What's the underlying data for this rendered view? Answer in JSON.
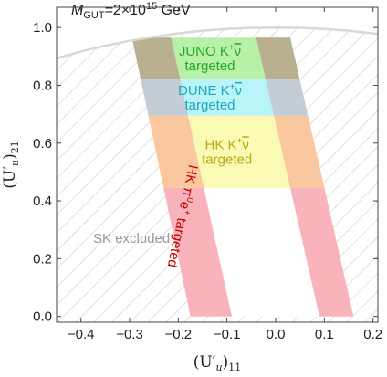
{
  "chart_data": {
    "type": "area",
    "xlabel": "(U′",
    "xlabel_sub": "u",
    "xlabel_tail": ")",
    "xlabel_index": "11",
    "ylabel": "(U′",
    "ylabel_sub": "u",
    "ylabel_tail": ")",
    "ylabel_index": "21",
    "xlim": [
      -0.45,
      0.21
    ],
    "ylim": [
      -0.02,
      1.07
    ],
    "x_ticks": [
      "-0.4",
      "-0.3",
      "-0.2",
      "-0.1",
      "0.0",
      "0.1",
      "0.2"
    ],
    "x_tick_values": [
      -0.4,
      -0.3,
      -0.2,
      -0.1,
      0.0,
      0.1,
      0.2
    ],
    "y_ticks": [
      "0.0",
      "0.2",
      "0.4",
      "0.6",
      "0.8",
      "1.0"
    ],
    "y_tick_values": [
      0.0,
      0.2,
      0.4,
      0.6,
      0.8,
      1.0
    ],
    "grid": false,
    "annotation": {
      "m": "M",
      "m_sub": "GUT",
      "eq": "=2×10",
      "exp": "15",
      "unit": " GeV"
    },
    "unitarity_curve": {
      "x": [
        -0.45,
        -0.4,
        -0.35,
        -0.3,
        -0.25,
        -0.2,
        -0.15,
        -0.1,
        -0.05,
        0.0,
        0.05,
        0.1,
        0.15,
        0.21
      ],
      "y": [
        0.893,
        0.917,
        0.937,
        0.954,
        0.968,
        0.98,
        0.989,
        0.995,
        0.999,
        1.0,
        0.999,
        0.995,
        0.989,
        0.978
      ]
    },
    "excluded_region": {
      "label": "SK excluded",
      "label_color": "#999999",
      "hatch_color": "#cccccc"
    },
    "hk_pi0": {
      "label_lines": [
        "HK π",
        "0",
        "e",
        "+",
        " targeted"
      ],
      "color": "#f8b3bb",
      "text_color": "#c00000",
      "left_band": [
        [
          -0.175,
          0.0
        ],
        [
          -0.09,
          0.0
        ],
        [
          -0.215,
          0.965
        ],
        [
          -0.295,
          0.965
        ]
      ],
      "right_band": [
        [
          0.09,
          0.0
        ],
        [
          0.16,
          0.0
        ],
        [
          0.03,
          0.965
        ],
        [
          -0.04,
          0.965
        ]
      ]
    },
    "regions": [
      {
        "name": "juno",
        "label_line1": "JUNO K",
        "label_sup": "+",
        "label_nu": "ν",
        "label_line2": "targeted",
        "ymin": 0.82,
        "ymax": 0.965,
        "color": "#b9f0a8",
        "overlap_color": "#b9b08f",
        "text_color": "#22aa22"
      },
      {
        "name": "dune",
        "label_line1": "DUNE K",
        "label_sup": "+",
        "label_nu": "ν",
        "label_line2": "targeted",
        "ymin": 0.695,
        "ymax": 0.82,
        "color": "#b8f4f8",
        "overlap_color": "#c2cdd6",
        "text_color": "#20a6c0"
      },
      {
        "name": "hk",
        "label_line1": "HK K",
        "label_sup": "+",
        "label_nu": "ν",
        "label_line2": "targeted",
        "ymin": 0.445,
        "ymax": 0.695,
        "color": "#fafab4",
        "overlap_color": "#fbc79e",
        "text_color": "#b8aa10"
      }
    ]
  }
}
